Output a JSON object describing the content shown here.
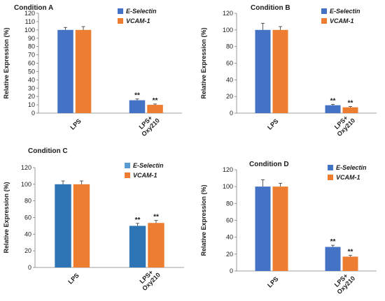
{
  "chart_data": [
    {
      "type": "bar",
      "title": "Condition A",
      "xlabel": "",
      "ylabel": "Relative Expression (%)",
      "ylim": [
        0,
        120
      ],
      "yticks": [
        0,
        10,
        20,
        30,
        40,
        50,
        60,
        70,
        80,
        90,
        100,
        110,
        120
      ],
      "categories": [
        "LPS",
        "LPS+ Oxy210"
      ],
      "series": [
        {
          "name": "E-Selectin",
          "color": "#4472C4",
          "values": [
            100,
            15.5
          ],
          "errors": [
            3,
            1.5
          ],
          "annotations": [
            "",
            "**"
          ]
        },
        {
          "name": "VCAM-1",
          "color": "#ED7D31",
          "values": [
            100,
            10
          ],
          "errors": [
            4,
            1
          ],
          "annotations": [
            "",
            "**"
          ]
        }
      ],
      "legend_position": "top-right",
      "grid": false
    },
    {
      "type": "bar",
      "title": "Condition B",
      "xlabel": "",
      "ylabel": "Relative Expression (%)",
      "ylim": [
        0,
        120
      ],
      "yticks": [
        0,
        20,
        40,
        60,
        80,
        100,
        120
      ],
      "categories": [
        "LPS",
        "LPS+ Oxy210"
      ],
      "series": [
        {
          "name": "E-Selectin",
          "color": "#4472C4",
          "values": [
            100,
            9.5
          ],
          "errors": [
            8,
            1
          ],
          "annotations": [
            "",
            "**"
          ]
        },
        {
          "name": "VCAM-1",
          "color": "#ED7D31",
          "values": [
            100,
            7
          ],
          "errors": [
            4,
            1
          ],
          "annotations": [
            "",
            "**"
          ]
        }
      ],
      "legend_position": "top-right",
      "grid": false
    },
    {
      "type": "bar",
      "title": "Condition C",
      "xlabel": "",
      "ylabel": "Relative Expression (%)",
      "ylim": [
        0,
        120
      ],
      "yticks": [
        0,
        20,
        40,
        60,
        80,
        100,
        120
      ],
      "categories": [
        "LPS",
        "LPS+ Oxy210"
      ],
      "series": [
        {
          "name": "E-Selectin",
          "color": "#2E75B6",
          "legend_color": "#5B9BD5",
          "values": [
            100,
            50
          ],
          "errors": [
            4,
            3
          ],
          "annotations": [
            "",
            "**"
          ]
        },
        {
          "name": "VCAM-1",
          "color": "#ED7D31",
          "values": [
            100,
            53.5
          ],
          "errors": [
            4,
            3
          ],
          "annotations": [
            "",
            "**"
          ]
        }
      ],
      "legend_position": "top-right",
      "grid": false
    },
    {
      "type": "bar",
      "title": "Condition D",
      "xlabel": "",
      "ylabel": "Relative Expression (%)",
      "ylim": [
        0,
        120
      ],
      "yticks": [
        0,
        20,
        40,
        60,
        80,
        100,
        120
      ],
      "categories": [
        "LPS",
        "LPS+ Oxy210"
      ],
      "series": [
        {
          "name": "E-Selectin",
          "color": "#4472C4",
          "values": [
            100,
            28.5
          ],
          "errors": [
            8,
            2
          ],
          "annotations": [
            "",
            "**"
          ]
        },
        {
          "name": "VCAM-1",
          "color": "#ED7D31",
          "values": [
            100,
            17
          ],
          "errors": [
            4,
            1.5
          ],
          "annotations": [
            "",
            "**"
          ]
        }
      ],
      "legend_position": "top-right",
      "grid": false
    }
  ]
}
